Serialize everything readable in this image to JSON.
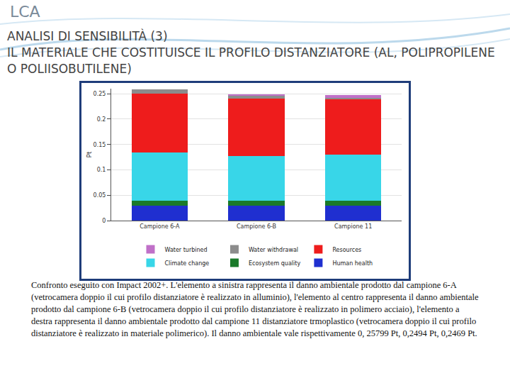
{
  "slide": {
    "title": "LCA",
    "subtitle_lines": [
      "ANALISI DI SENSIBILITÀ (3)",
      "IL MATERIALE CHE COSTITUISCE IL PROFILO DISTANZIATORE (AL, POLIPROPILENE O POLIISOBUTILENE)"
    ],
    "caption": "Confronto eseguito con Impact 2002+. L'elemento a sinistra rappresenta il danno ambientale prodotto dal campione 6-A (vetrocamera doppio il cui profilo distanziatore è realizzato in alluminio), l'elemento al centro rappresenta il danno ambientale prodotto dal campione 6-B (vetrocamera doppio il cui profilo distanziatore è realizzato in polimero acciaio), l'elemento a destra rappresenta il danno ambientale prodotto dal campione 11 distanziatore trmoplastico (vetrocamera doppio il cui profilo distanziatore è realizzato in materiale polimerico). Il danno ambientale vale rispettivamente 0, 25799 Pt, 0,2494 Pt, 0,2469 Pt."
  },
  "chart_data": {
    "type": "bar",
    "stacked": true,
    "y_label": "Pt",
    "categories": [
      "Campione 6-A",
      "Campione 6-B",
      "Campione 11"
    ],
    "series": [
      {
        "name": "Human health",
        "color": "#1f2fd0",
        "values": [
          0.03,
          0.03,
          0.03
        ]
      },
      {
        "name": "Ecosystem quality",
        "color": "#1a7a2a",
        "values": [
          0.0096,
          0.0096,
          0.0096
        ]
      },
      {
        "name": "Climate change",
        "color": "#38d6e8",
        "values": [
          0.095,
          0.087,
          0.09
        ]
      },
      {
        "name": "Resources",
        "color": "#ee1c1c",
        "values": [
          0.115,
          0.114,
          0.109
        ]
      },
      {
        "name": "Water withdrawal",
        "color": "#8c8c8c",
        "values": [
          0.0084,
          0.005,
          0.0036
        ]
      },
      {
        "name": "Water turbined",
        "color": "#c070c8",
        "values": [
          0,
          0.0036,
          0.0048
        ]
      }
    ],
    "ylim": [
      0,
      0.26
    ],
    "yticks": [
      0,
      0.05,
      0.1,
      0.15,
      0.2,
      0.25
    ],
    "grid": true,
    "legend": "bottom"
  }
}
